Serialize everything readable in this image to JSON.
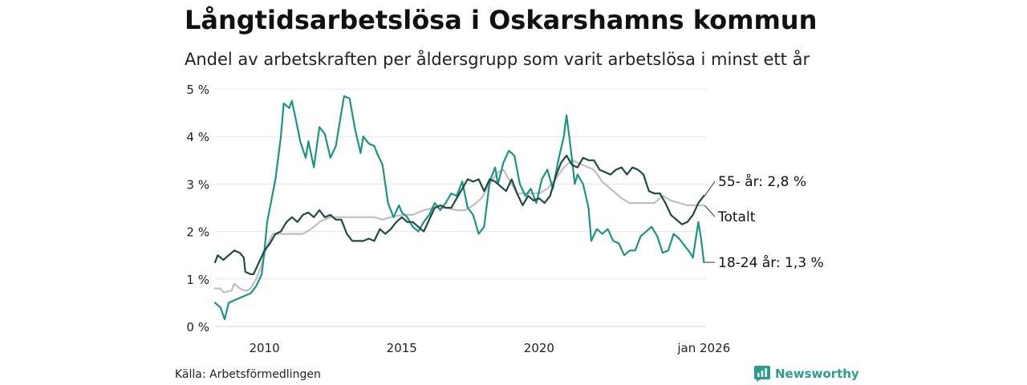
{
  "title": "Långtidsarbetslösa i Oskarshamns kommun",
  "subtitle": "Andel av arbetskraften per åldersgrupp som varit arbetslösa i minst ett år",
  "source": "Källa: Arbetsförmedlingen",
  "brand": {
    "name": "Newsworthy",
    "icon": "newsworthy-logo-icon",
    "color": "#2a9d8f"
  },
  "chart_data": {
    "type": "line",
    "title": "Långtidsarbetslösa i Oskarshamns kommun",
    "xlabel": "",
    "ylabel": "",
    "xlim": [
      2008.2,
      2026.08
    ],
    "ylim": [
      0,
      5
    ],
    "grid": true,
    "yticks": [
      {
        "value": 0,
        "label": "0 %"
      },
      {
        "value": 1,
        "label": "1 %"
      },
      {
        "value": 2,
        "label": "2 %"
      },
      {
        "value": 3,
        "label": "3 %"
      },
      {
        "value": 4,
        "label": "4 %"
      },
      {
        "value": 5,
        "label": "5 %"
      }
    ],
    "xticks": [
      {
        "value": 2010,
        "label": "2010"
      },
      {
        "value": 2015,
        "label": "2015"
      },
      {
        "value": 2020,
        "label": "2020"
      },
      {
        "value": 2026.0,
        "label": "jan 2026"
      }
    ],
    "series": [
      {
        "name": "Totalt",
        "label": "Totalt",
        "color": "#c0bdc6",
        "points": [
          [
            2008.2,
            0.8
          ],
          [
            2008.4,
            0.8
          ],
          [
            2008.5,
            0.72
          ],
          [
            2008.8,
            0.75
          ],
          [
            2008.9,
            0.9
          ],
          [
            2009.1,
            0.8
          ],
          [
            2009.3,
            0.75
          ],
          [
            2009.5,
            0.8
          ],
          [
            2009.7,
            1.0
          ],
          [
            2009.9,
            1.3
          ],
          [
            2010.1,
            1.7
          ],
          [
            2010.3,
            1.95
          ],
          [
            2010.6,
            1.95
          ],
          [
            2011.0,
            1.95
          ],
          [
            2011.4,
            1.95
          ],
          [
            2011.7,
            2.05
          ],
          [
            2012.0,
            2.2
          ],
          [
            2012.4,
            2.3
          ],
          [
            2012.8,
            2.3
          ],
          [
            2013.2,
            2.3
          ],
          [
            2013.6,
            2.3
          ],
          [
            2014.0,
            2.3
          ],
          [
            2014.3,
            2.25
          ],
          [
            2014.6,
            2.3
          ],
          [
            2015.0,
            2.35
          ],
          [
            2015.4,
            2.35
          ],
          [
            2015.8,
            2.45
          ],
          [
            2016.2,
            2.5
          ],
          [
            2016.6,
            2.5
          ],
          [
            2017.0,
            2.45
          ],
          [
            2017.3,
            2.45
          ],
          [
            2017.6,
            2.55
          ],
          [
            2017.9,
            2.7
          ],
          [
            2018.2,
            3.0
          ],
          [
            2018.5,
            3.25
          ],
          [
            2018.7,
            3.3
          ],
          [
            2018.9,
            3.1
          ],
          [
            2019.2,
            2.8
          ],
          [
            2019.6,
            2.8
          ],
          [
            2020.0,
            2.8
          ],
          [
            2020.3,
            2.9
          ],
          [
            2020.6,
            3.1
          ],
          [
            2020.9,
            3.35
          ],
          [
            2021.2,
            3.5
          ],
          [
            2021.6,
            3.4
          ],
          [
            2022.0,
            3.3
          ],
          [
            2022.3,
            3.05
          ],
          [
            2022.7,
            2.85
          ],
          [
            2023.0,
            2.7
          ],
          [
            2023.3,
            2.6
          ],
          [
            2023.6,
            2.6
          ],
          [
            2023.9,
            2.6
          ],
          [
            2024.2,
            2.6
          ],
          [
            2024.5,
            2.75
          ],
          [
            2024.8,
            2.65
          ],
          [
            2025.1,
            2.6
          ],
          [
            2025.4,
            2.55
          ],
          [
            2025.7,
            2.55
          ],
          [
            2026.0,
            2.55
          ]
        ]
      },
      {
        "name": "18-24 år",
        "label": "18-24 år: 1,3 %",
        "color": "#1b9486",
        "points": [
          [
            2008.2,
            0.5
          ],
          [
            2008.4,
            0.4
          ],
          [
            2008.55,
            0.15
          ],
          [
            2008.7,
            0.5
          ],
          [
            2008.9,
            0.55
          ],
          [
            2009.1,
            0.6
          ],
          [
            2009.3,
            0.65
          ],
          [
            2009.5,
            0.7
          ],
          [
            2009.7,
            0.85
          ],
          [
            2009.9,
            1.1
          ],
          [
            2010.0,
            1.6
          ],
          [
            2010.1,
            2.2
          ],
          [
            2010.3,
            2.8
          ],
          [
            2010.4,
            3.1
          ],
          [
            2010.6,
            4.0
          ],
          [
            2010.7,
            4.7
          ],
          [
            2010.9,
            4.6
          ],
          [
            2011.0,
            4.75
          ],
          [
            2011.2,
            4.2
          ],
          [
            2011.3,
            3.9
          ],
          [
            2011.5,
            3.55
          ],
          [
            2011.6,
            3.9
          ],
          [
            2011.8,
            3.35
          ],
          [
            2012.0,
            4.2
          ],
          [
            2012.2,
            4.05
          ],
          [
            2012.4,
            3.55
          ],
          [
            2012.6,
            3.8
          ],
          [
            2012.8,
            4.5
          ],
          [
            2012.9,
            4.85
          ],
          [
            2013.1,
            4.8
          ],
          [
            2013.3,
            4.15
          ],
          [
            2013.5,
            3.65
          ],
          [
            2013.6,
            4.0
          ],
          [
            2013.8,
            3.85
          ],
          [
            2014.0,
            3.8
          ],
          [
            2014.1,
            3.65
          ],
          [
            2014.3,
            3.4
          ],
          [
            2014.5,
            2.6
          ],
          [
            2014.7,
            2.3
          ],
          [
            2014.9,
            2.55
          ],
          [
            2015.0,
            2.4
          ],
          [
            2015.2,
            2.3
          ],
          [
            2015.4,
            2.1
          ],
          [
            2015.6,
            2.0
          ],
          [
            2015.8,
            2.2
          ],
          [
            2016.0,
            2.35
          ],
          [
            2016.2,
            2.6
          ],
          [
            2016.4,
            2.45
          ],
          [
            2016.6,
            2.6
          ],
          [
            2016.8,
            2.8
          ],
          [
            2017.0,
            2.75
          ],
          [
            2017.2,
            3.05
          ],
          [
            2017.4,
            2.5
          ],
          [
            2017.6,
            2.35
          ],
          [
            2017.8,
            1.95
          ],
          [
            2018.0,
            2.1
          ],
          [
            2018.2,
            3.05
          ],
          [
            2018.4,
            3.35
          ],
          [
            2018.5,
            3.0
          ],
          [
            2018.7,
            3.45
          ],
          [
            2018.9,
            3.7
          ],
          [
            2019.1,
            3.6
          ],
          [
            2019.3,
            3.0
          ],
          [
            2019.5,
            2.75
          ],
          [
            2019.7,
            2.9
          ],
          [
            2019.9,
            2.6
          ],
          [
            2020.1,
            3.1
          ],
          [
            2020.3,
            3.3
          ],
          [
            2020.5,
            2.9
          ],
          [
            2020.7,
            3.5
          ],
          [
            2020.9,
            4.0
          ],
          [
            2021.0,
            4.45
          ],
          [
            2021.1,
            4.0
          ],
          [
            2021.2,
            3.5
          ],
          [
            2021.3,
            3.0
          ],
          [
            2021.4,
            3.2
          ],
          [
            2021.6,
            3.0
          ],
          [
            2021.8,
            2.5
          ],
          [
            2021.9,
            1.8
          ],
          [
            2022.1,
            2.05
          ],
          [
            2022.3,
            1.95
          ],
          [
            2022.5,
            2.05
          ],
          [
            2022.7,
            1.8
          ],
          [
            2022.9,
            1.75
          ],
          [
            2023.1,
            1.5
          ],
          [
            2023.3,
            1.6
          ],
          [
            2023.5,
            1.6
          ],
          [
            2023.7,
            1.9
          ],
          [
            2023.9,
            2.0
          ],
          [
            2024.1,
            2.1
          ],
          [
            2024.3,
            1.9
          ],
          [
            2024.5,
            1.55
          ],
          [
            2024.7,
            1.6
          ],
          [
            2024.9,
            1.95
          ],
          [
            2025.1,
            1.85
          ],
          [
            2025.3,
            1.7
          ],
          [
            2025.5,
            1.55
          ],
          [
            2025.6,
            1.45
          ],
          [
            2025.8,
            2.2
          ],
          [
            2025.9,
            1.85
          ],
          [
            2026.0,
            1.35
          ]
        ]
      },
      {
        "name": "55- år",
        "label": "55- år: 2,8 %",
        "color": "#1f4a42",
        "points": [
          [
            2008.2,
            1.35
          ],
          [
            2008.3,
            1.5
          ],
          [
            2008.5,
            1.4
          ],
          [
            2008.7,
            1.5
          ],
          [
            2008.9,
            1.6
          ],
          [
            2009.1,
            1.55
          ],
          [
            2009.25,
            1.45
          ],
          [
            2009.3,
            1.15
          ],
          [
            2009.5,
            1.1
          ],
          [
            2009.6,
            1.1
          ],
          [
            2009.8,
            1.35
          ],
          [
            2010.0,
            1.6
          ],
          [
            2010.2,
            1.75
          ],
          [
            2010.4,
            1.95
          ],
          [
            2010.6,
            2.0
          ],
          [
            2010.8,
            2.2
          ],
          [
            2011.0,
            2.3
          ],
          [
            2011.2,
            2.2
          ],
          [
            2011.4,
            2.35
          ],
          [
            2011.6,
            2.4
          ],
          [
            2011.8,
            2.3
          ],
          [
            2012.0,
            2.45
          ],
          [
            2012.2,
            2.3
          ],
          [
            2012.4,
            2.35
          ],
          [
            2012.6,
            2.25
          ],
          [
            2012.8,
            2.25
          ],
          [
            2013.0,
            1.95
          ],
          [
            2013.2,
            1.8
          ],
          [
            2013.4,
            1.8
          ],
          [
            2013.6,
            1.8
          ],
          [
            2013.8,
            1.85
          ],
          [
            2014.0,
            1.8
          ],
          [
            2014.2,
            2.05
          ],
          [
            2014.4,
            1.95
          ],
          [
            2014.6,
            2.05
          ],
          [
            2014.8,
            2.2
          ],
          [
            2015.0,
            2.3
          ],
          [
            2015.2,
            2.2
          ],
          [
            2015.4,
            2.2
          ],
          [
            2015.6,
            2.1
          ],
          [
            2015.8,
            2.0
          ],
          [
            2016.0,
            2.25
          ],
          [
            2016.2,
            2.5
          ],
          [
            2016.4,
            2.55
          ],
          [
            2016.6,
            2.5
          ],
          [
            2016.8,
            2.5
          ],
          [
            2017.0,
            2.7
          ],
          [
            2017.2,
            2.9
          ],
          [
            2017.4,
            3.1
          ],
          [
            2017.6,
            3.05
          ],
          [
            2017.8,
            3.1
          ],
          [
            2018.0,
            2.85
          ],
          [
            2018.2,
            3.1
          ],
          [
            2018.4,
            3.05
          ],
          [
            2018.6,
            2.95
          ],
          [
            2018.8,
            2.85
          ],
          [
            2019.0,
            3.1
          ],
          [
            2019.2,
            2.8
          ],
          [
            2019.4,
            2.55
          ],
          [
            2019.6,
            2.75
          ],
          [
            2019.8,
            2.65
          ],
          [
            2020.0,
            2.7
          ],
          [
            2020.2,
            2.6
          ],
          [
            2020.4,
            2.75
          ],
          [
            2020.6,
            3.15
          ],
          [
            2020.8,
            3.45
          ],
          [
            2021.0,
            3.6
          ],
          [
            2021.2,
            3.4
          ],
          [
            2021.4,
            3.35
          ],
          [
            2021.6,
            3.55
          ],
          [
            2021.8,
            3.5
          ],
          [
            2022.0,
            3.5
          ],
          [
            2022.2,
            3.3
          ],
          [
            2022.4,
            3.25
          ],
          [
            2022.6,
            3.2
          ],
          [
            2022.8,
            3.3
          ],
          [
            2023.0,
            3.35
          ],
          [
            2023.2,
            3.2
          ],
          [
            2023.4,
            3.35
          ],
          [
            2023.6,
            3.3
          ],
          [
            2023.8,
            3.2
          ],
          [
            2024.0,
            2.85
          ],
          [
            2024.2,
            2.8
          ],
          [
            2024.4,
            2.8
          ],
          [
            2024.6,
            2.6
          ],
          [
            2024.8,
            2.35
          ],
          [
            2025.0,
            2.25
          ],
          [
            2025.2,
            2.15
          ],
          [
            2025.4,
            2.2
          ],
          [
            2025.6,
            2.35
          ],
          [
            2025.8,
            2.6
          ],
          [
            2026.0,
            2.75
          ]
        ]
      }
    ],
    "labels_order": [
      "55- år",
      "Totalt",
      "18-24 år"
    ]
  }
}
